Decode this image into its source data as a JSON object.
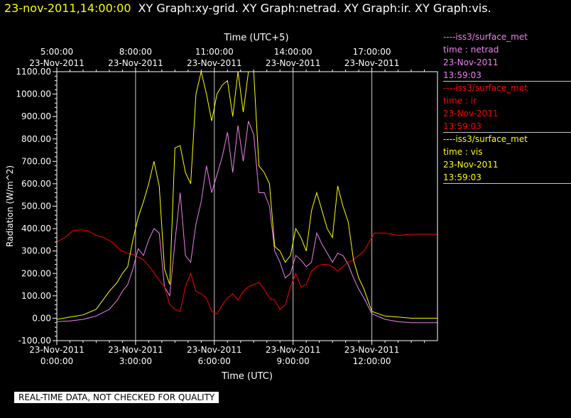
{
  "header": {
    "timestamp": "23-nov-2011,14:00:00",
    "graphs": "XY Graph:xy-grid.  XY Graph:netrad.  XY Graph:ir.  XY Graph:vis."
  },
  "legend": [
    {
      "source": "----iss3/surface_met",
      "label": "time : netrad",
      "date": "23-Nov-2011",
      "time": "13:59:03",
      "color": "#ee82ee"
    },
    {
      "source": "----iss3/surface_met",
      "label": "time : ir",
      "date": "23-Nov-2011",
      "time": "13:59:03",
      "color": "#ff0000"
    },
    {
      "source": "----iss3/surface_met",
      "label": "time : vis",
      "date": "23-Nov-2011",
      "time": "13:59:03",
      "color": "#ffff00"
    }
  ],
  "disclaimer": "REAL-TIME DATA, NOT CHECKED FOR QUALITY",
  "chart_data": {
    "type": "line",
    "xlabel": "Time (UTC)",
    "x2label": "Time (UTC+5)",
    "ylabel": "Radiation (W/m^2)",
    "ylim": [
      -100,
      1100
    ],
    "xlim_hours": [
      0,
      14.5
    ],
    "grid": "vertical",
    "y_ticks": [
      "-100.00",
      "0.00",
      "100.00",
      "200.00",
      "300.00",
      "400.00",
      "500.00",
      "600.00",
      "700.00",
      "800.00",
      "900.00",
      "1000.00",
      "1100.00"
    ],
    "y_tick_values": [
      -100,
      0,
      100,
      200,
      300,
      400,
      500,
      600,
      700,
      800,
      900,
      1000,
      1100
    ],
    "x_ticks": [
      {
        "hour": 0,
        "date": "23-Nov-2011",
        "time": "0:00:00"
      },
      {
        "hour": 3,
        "date": "23-Nov-2011",
        "time": "3:00:00"
      },
      {
        "hour": 6,
        "date": "23-Nov-2011",
        "time": "6:00:00"
      },
      {
        "hour": 9,
        "date": "23-Nov-2011",
        "time": "9:00:00"
      },
      {
        "hour": 12,
        "date": "23-Nov-2011",
        "time": "12:00:00"
      }
    ],
    "x2_ticks": [
      {
        "hour": 0,
        "date": "23-Nov-2011",
        "time": "5:00:00"
      },
      {
        "hour": 3,
        "date": "23-Nov-2011",
        "time": "8:00:00"
      },
      {
        "hour": 6,
        "date": "23-Nov-2011",
        "time": "11:00:00"
      },
      {
        "hour": 9,
        "date": "23-Nov-2011",
        "time": "14:00:00"
      },
      {
        "hour": 12,
        "date": "23-Nov-2011",
        "time": "17:00:00"
      }
    ],
    "series": [
      {
        "name": "netrad",
        "color": "#ee82ee",
        "x": [
          0,
          0.5,
          1,
          1.5,
          2,
          2.3,
          2.5,
          2.7,
          2.9,
          3.1,
          3.3,
          3.5,
          3.7,
          3.9,
          4.1,
          4.3,
          4.5,
          4.7,
          4.9,
          5.1,
          5.3,
          5.5,
          5.7,
          5.9,
          6.1,
          6.3,
          6.5,
          6.7,
          6.9,
          7.1,
          7.3,
          7.5,
          7.7,
          7.9,
          8.1,
          8.3,
          8.5,
          8.7,
          8.9,
          9.1,
          9.3,
          9.5,
          9.7,
          9.9,
          10.1,
          10.3,
          10.5,
          10.7,
          10.9,
          11.1,
          11.3,
          11.5,
          11.7,
          12,
          12.5,
          13,
          13.5,
          14,
          14.5
        ],
        "y": [
          -15,
          -12,
          -5,
          10,
          40,
          80,
          120,
          150,
          220,
          310,
          280,
          350,
          400,
          380,
          140,
          100,
          340,
          560,
          280,
          250,
          420,
          520,
          680,
          560,
          640,
          720,
          830,
          650,
          860,
          700,
          880,
          820,
          560,
          560,
          500,
          300,
          250,
          180,
          200,
          280,
          260,
          230,
          250,
          380,
          330,
          290,
          250,
          290,
          280,
          240,
          180,
          130,
          90,
          20,
          -5,
          -15,
          -20,
          -20,
          -20
        ]
      },
      {
        "name": "ir",
        "color": "#ff0000",
        "x": [
          0,
          0.3,
          0.6,
          0.9,
          1.2,
          1.5,
          1.8,
          2.1,
          2.4,
          2.7,
          3,
          3.3,
          3.6,
          3.9,
          4.1,
          4.3,
          4.5,
          4.7,
          4.9,
          5.1,
          5.3,
          5.5,
          5.7,
          5.9,
          6.1,
          6.3,
          6.5,
          6.7,
          6.9,
          7.1,
          7.3,
          7.5,
          7.7,
          7.9,
          8.1,
          8.3,
          8.5,
          8.7,
          8.9,
          9.1,
          9.3,
          9.5,
          9.7,
          9.9,
          10.1,
          10.3,
          10.5,
          10.7,
          10.9,
          11.1,
          11.3,
          11.5,
          11.7,
          11.9,
          12.1,
          12.5,
          13,
          13.5,
          14,
          14.5
        ],
        "y": [
          340,
          360,
          390,
          395,
          390,
          370,
          360,
          340,
          305,
          290,
          280,
          260,
          220,
          170,
          140,
          60,
          40,
          30,
          140,
          200,
          120,
          110,
          90,
          30,
          20,
          60,
          90,
          110,
          80,
          120,
          140,
          150,
          160,
          130,
          90,
          80,
          40,
          60,
          140,
          200,
          140,
          150,
          210,
          230,
          240,
          240,
          230,
          210,
          230,
          250,
          260,
          280,
          300,
          340,
          380,
          380,
          370,
          375,
          375,
          375
        ]
      },
      {
        "name": "vis",
        "color": "#ffff00",
        "x": [
          0,
          0.5,
          1,
          1.5,
          2,
          2.3,
          2.5,
          2.7,
          2.9,
          3.1,
          3.3,
          3.5,
          3.7,
          3.9,
          4.1,
          4.3,
          4.5,
          4.7,
          4.9,
          5.1,
          5.3,
          5.5,
          5.7,
          5.9,
          6.1,
          6.3,
          6.5,
          6.7,
          6.9,
          7.1,
          7.3,
          7.5,
          7.7,
          7.9,
          8.1,
          8.3,
          8.5,
          8.7,
          8.9,
          9.1,
          9.3,
          9.5,
          9.7,
          9.9,
          10.1,
          10.3,
          10.5,
          10.7,
          10.9,
          11.1,
          11.3,
          11.5,
          11.7,
          12,
          12.5,
          13,
          13.5,
          14,
          14.5
        ],
        "y": [
          -5,
          5,
          15,
          40,
          120,
          160,
          200,
          230,
          350,
          450,
          520,
          600,
          700,
          590,
          220,
          150,
          760,
          770,
          650,
          600,
          1000,
          1100,
          1000,
          880,
          1000,
          1040,
          1060,
          900,
          1100,
          920,
          1100,
          1100,
          680,
          650,
          600,
          320,
          300,
          250,
          280,
          400,
          360,
          300,
          480,
          560,
          480,
          400,
          360,
          590,
          500,
          430,
          260,
          180,
          130,
          30,
          10,
          5,
          0,
          0,
          0
        ]
      }
    ]
  }
}
